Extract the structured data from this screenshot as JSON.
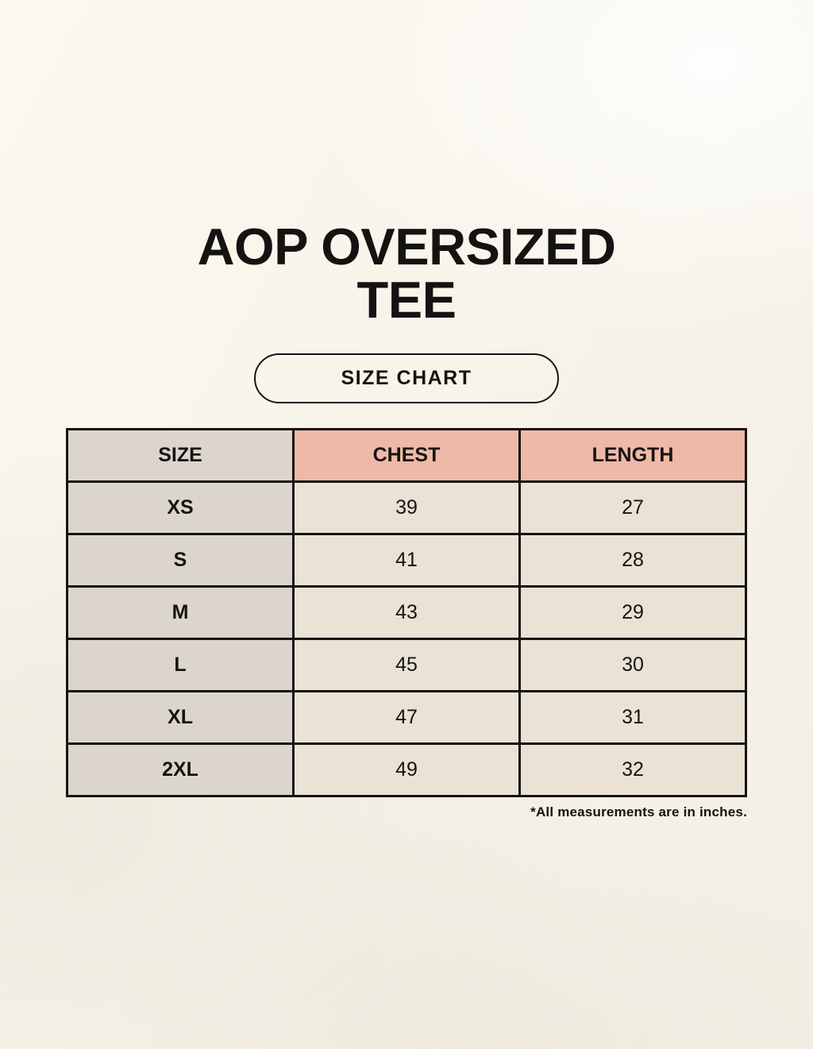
{
  "title": {
    "line1": "AOP OVERSIZED",
    "line2": "TEE"
  },
  "pill_label": "SIZE CHART",
  "table": {
    "headers": [
      "SIZE",
      "CHEST",
      "LENGTH"
    ],
    "rows": [
      {
        "size": "XS",
        "chest": "39",
        "length": "27"
      },
      {
        "size": "S",
        "chest": "41",
        "length": "28"
      },
      {
        "size": "M",
        "chest": "43",
        "length": "29"
      },
      {
        "size": "L",
        "chest": "45",
        "length": "30"
      },
      {
        "size": "XL",
        "chest": "47",
        "length": "31"
      },
      {
        "size": "2XL",
        "chest": "49",
        "length": "32"
      }
    ]
  },
  "footnote": "*All measurements are in inches.",
  "colors": {
    "background": "#f7f3ea",
    "header_pink": "#efb9a8",
    "size_column_gray": "#dcd5ce",
    "cell_cream": "#e9e2d5",
    "border_black": "#161412"
  },
  "chart_data": {
    "type": "table",
    "title": "AOP OVERSIZED TEE",
    "subtitle": "SIZE CHART",
    "columns": [
      "SIZE",
      "CHEST",
      "LENGTH"
    ],
    "rows": [
      [
        "XS",
        39,
        27
      ],
      [
        "S",
        41,
        28
      ],
      [
        "M",
        43,
        29
      ],
      [
        "L",
        45,
        30
      ],
      [
        "XL",
        47,
        31
      ],
      [
        "2XL",
        49,
        32
      ]
    ],
    "units": "inches",
    "note": "*All measurements are in inches."
  }
}
